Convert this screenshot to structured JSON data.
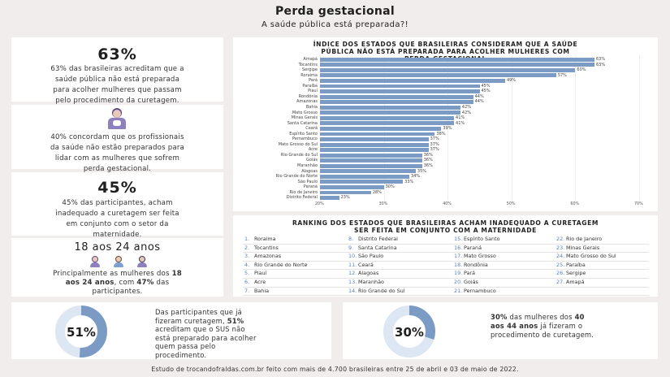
{
  "header": {
    "title": "Perda gestacional",
    "subtitle": "A saúde pública está preparada?!"
  },
  "stat_63": {
    "value": "63%",
    "text_lines": [
      "63% das brasileiras acreditam que a",
      "saúde pública não está preparada",
      "para acolher mulheres que passam",
      "pelo procedimento da curetagem."
    ]
  },
  "stat_40": {
    "text_lines": [
      "40% concordam que os profissionais",
      "da saúde não estão preparados para",
      "lidar com as mulheres que sofrem",
      "perda gestacional."
    ]
  },
  "stat_45": {
    "value": "45%",
    "text_lines": [
      "45% das participantes, acham",
      "inadequado a curetagem ser feita",
      "em conjunto com o setor da",
      "maternidade."
    ]
  },
  "age_box": {
    "title": "18 aos 24 anos",
    "line1_a": "Principalmente as mulheres dos ",
    "line1_b": "18",
    "line2_a": "aos 24 anos",
    "line2_b": ", com ",
    "line2_c": "47%",
    "line2_d": " das",
    "line3": "participantes."
  },
  "chart_data": {
    "type": "bar",
    "orientation": "horizontal",
    "title": "ÍNDICE DOS ESTADOS QUE BRASILEIRAS CONSIDEREAM QUE A SAÚDE PÚBLICA NÃO ESTÁ PREPARADA PARA ACOLHER MULHERES COM PERDA GESTACIONAL",
    "title_lines": [
      "ÍNDICE DOS ESTADOS QUE BRASILEIRAS CONSIDERAM QUE A SAÚDE",
      "PÚBLICA NÃO ESTÁ PREPARADA PARA ACOLHER MULHERES COM",
      "PERDA GESTACIONAL"
    ],
    "categories": [
      "Amapá",
      "Tocantins",
      "Sergipe",
      "Roraima",
      "Pará",
      "Paraíba",
      "Piauí",
      "Rondônia",
      "Amazonas",
      "Bahia",
      "Mato Grosso",
      "Minas Gerais",
      "Santa Catarina",
      "Ceará",
      "Espírito Santo",
      "Pernambuco",
      "Mato Grosso do Sul",
      "Acre",
      "Rio Grande do Sul",
      "Goiás",
      "Maranhão",
      "Alagoas",
      "Rio Grande do Norte",
      "São Paulo",
      "Paraná",
      "Rio de Janeiro",
      "Distrito Federal"
    ],
    "values": [
      63,
      63,
      60,
      57,
      49,
      45,
      45,
      44,
      44,
      42,
      42,
      41,
      41,
      39,
      38,
      37,
      37,
      37,
      36,
      36,
      36,
      35,
      34,
      33,
      30,
      28,
      23
    ],
    "value_labels": [
      "63%",
      "63%",
      "60%",
      "57%",
      "49%",
      "45%",
      "45%",
      "44%",
      "44%",
      "42%",
      "42%",
      "41%",
      "41%",
      "39%",
      "38%",
      "37%",
      "37%",
      "37%",
      "36%",
      "36%",
      "36%",
      "35%",
      "34%",
      "33%",
      "30%",
      "28%",
      "23%"
    ],
    "xticks": [
      "20%",
      "30%",
      "40%",
      "50%",
      "60%",
      "70%"
    ],
    "xlim": [
      20,
      70
    ],
    "bar_color": "#7b9ac4"
  },
  "ranking": {
    "title_lines": [
      "RANKING DOS ESTADOS QUE BRASILEIRAS ACHAM INADEQUADO A CURETAGEM",
      "SER FEITA EM CONJUNTO COM A MATERNIDADE"
    ],
    "items": [
      {
        "n": "1.",
        "name": "Roraima"
      },
      {
        "n": "2.",
        "name": "Tocantins"
      },
      {
        "n": "3.",
        "name": "Amazonas"
      },
      {
        "n": "4.",
        "name": "Rio Grande do Norte"
      },
      {
        "n": "5.",
        "name": "Piauí"
      },
      {
        "n": "6.",
        "name": "Acre"
      },
      {
        "n": "7.",
        "name": "Bahia"
      },
      {
        "n": "8.",
        "name": "Distrito Federal"
      },
      {
        "n": "9.",
        "name": "Santa Catarina"
      },
      {
        "n": "10.",
        "name": "São Paulo"
      },
      {
        "n": "11.",
        "name": "Ceará"
      },
      {
        "n": "12.",
        "name": "Alagoas"
      },
      {
        "n": "13.",
        "name": "Maranhão"
      },
      {
        "n": "14.",
        "name": "Rio Grande do Sul"
      },
      {
        "n": "15.",
        "name": "Espírito Santo"
      },
      {
        "n": "16.",
        "name": "Paraná"
      },
      {
        "n": "17.",
        "name": "Mato Grosso"
      },
      {
        "n": "18.",
        "name": "Rondônia"
      },
      {
        "n": "19.",
        "name": "Pará"
      },
      {
        "n": "20.",
        "name": "Goiás"
      },
      {
        "n": "21.",
        "name": "Pernambuco"
      },
      {
        "n": "22.",
        "name": "Rio de Janeiro"
      },
      {
        "n": "23.",
        "name": "Minas Gerais"
      },
      {
        "n": "24.",
        "name": "Mato Grosso do Sul"
      },
      {
        "n": "25.",
        "name": "Paraíba"
      },
      {
        "n": "26.",
        "name": "Sergipe"
      },
      {
        "n": "27.",
        "name": "Amapá"
      }
    ]
  },
  "donut_51": {
    "label": "51%",
    "fraction": 0.51,
    "l1": "Das participantes que já",
    "l2": "fizeram curetagem, ",
    "l2b": "51%",
    "l3": "acreditam que o SUS não",
    "l4": "está preparado para acolher",
    "l5": "quem passa pelo",
    "l6": "procedimento."
  },
  "donut_30": {
    "label": "30%",
    "fraction": 0.3,
    "l1a": "30%",
    "l1b": " das mulheres dos ",
    "l1c": "40",
    "l2a": "aos 44 anos",
    "l2b": " já fizeram o",
    "l3": "procedimento de curetagem."
  },
  "footer": {
    "text": "Estudo de trocandofraldas.com.br feito com mais de 4.700 brasileiras entre 25 de abril e 03 de maio de 2022."
  },
  "colors": {
    "accent": "#7b9ac4",
    "donut_track": "#dde6f3",
    "figure_purple": "#8e80bf",
    "figure_blue": "#7e9fd0"
  }
}
